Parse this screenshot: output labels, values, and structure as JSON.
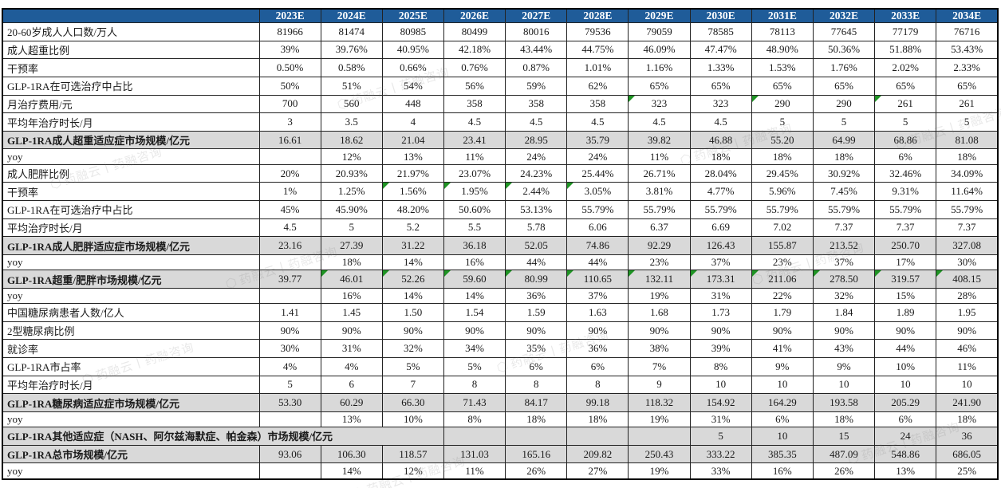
{
  "watermark": {
    "text": "药融云丨药融咨询",
    "icon": "hexagon-logo"
  },
  "table": {
    "corner_label": "",
    "years": [
      "2023E",
      "2024E",
      "2025E",
      "2026E",
      "2027E",
      "2028E",
      "2029E",
      "2030E",
      "2031E",
      "2032E",
      "2033E",
      "2034E"
    ],
    "rows": [
      {
        "label": "20-60岁成人人口数/万人",
        "style": "normal",
        "values": [
          "81966",
          "81474",
          "80985",
          "80499",
          "80016",
          "79536",
          "79059",
          "78585",
          "78113",
          "77645",
          "77179",
          "76716"
        ]
      },
      {
        "label": "成人超重比例",
        "style": "normal",
        "values": [
          "39%",
          "39.76%",
          "40.95%",
          "42.18%",
          "43.44%",
          "44.75%",
          "46.09%",
          "47.47%",
          "48.90%",
          "50.36%",
          "51.88%",
          "53.43%"
        ]
      },
      {
        "label": "干预率",
        "style": "normal",
        "values": [
          "0.50%",
          "0.58%",
          "0.66%",
          "0.76%",
          "0.87%",
          "1.01%",
          "1.16%",
          "1.33%",
          "1.53%",
          "1.76%",
          "2.02%",
          "2.33%"
        ]
      },
      {
        "label": "GLP-1RA在可选治疗中占比",
        "style": "normal",
        "values": [
          "50%",
          "51%",
          "54%",
          "56%",
          "59%",
          "62%",
          "65%",
          "65%",
          "65%",
          "65%",
          "65%",
          "65%"
        ]
      },
      {
        "label": "月治疗费用/元",
        "style": "normal",
        "markers": [
          6,
          8,
          10
        ],
        "values": [
          "700",
          "560",
          "448",
          "358",
          "358",
          "358",
          "323",
          "323",
          "290",
          "290",
          "261",
          "261"
        ]
      },
      {
        "label": "平均年治疗时长/月",
        "style": "normal",
        "values": [
          "3",
          "3.5",
          "4",
          "4.5",
          "4.5",
          "4.5",
          "4.5",
          "4.5",
          "5",
          "5",
          "5",
          "5"
        ]
      },
      {
        "label": "GLP-1RA成人超重适应症市场规模/亿元",
        "style": "summary",
        "values": [
          "16.61",
          "18.62",
          "21.04",
          "23.41",
          "28.95",
          "35.79",
          "39.82",
          "46.88",
          "55.20",
          "64.99",
          "68.86",
          "81.08"
        ]
      },
      {
        "label": "yoy",
        "style": "normal",
        "values": [
          "",
          "12%",
          "13%",
          "11%",
          "24%",
          "24%",
          "11%",
          "18%",
          "18%",
          "18%",
          "6%",
          "18%"
        ]
      },
      {
        "label": "成人肥胖比例",
        "style": "normal",
        "values": [
          "20%",
          "20.93%",
          "21.97%",
          "23.07%",
          "24.23%",
          "25.44%",
          "26.71%",
          "28.04%",
          "29.45%",
          "30.92%",
          "32.46%",
          "34.09%"
        ]
      },
      {
        "label": "干预率",
        "style": "normal",
        "markers": [
          2,
          3,
          4,
          5
        ],
        "values": [
          "1%",
          "1.25%",
          "1.56%",
          "1.95%",
          "2.44%",
          "3.05%",
          "3.81%",
          "4.77%",
          "5.96%",
          "7.45%",
          "9.31%",
          "11.64%"
        ]
      },
      {
        "label": "GLP-1RA在可选治疗中占比",
        "style": "normal",
        "values": [
          "45%",
          "45.90%",
          "48.20%",
          "50.60%",
          "53.13%",
          "55.79%",
          "55.79%",
          "55.79%",
          "55.79%",
          "55.79%",
          "55.79%",
          "55.79%"
        ]
      },
      {
        "label": "平均治疗时长/月",
        "style": "normal",
        "values": [
          "4.5",
          "5",
          "5.2",
          "5.5",
          "5.78",
          "6.06",
          "6.37",
          "6.69",
          "7.02",
          "7.37",
          "7.37",
          "7.37"
        ]
      },
      {
        "label": "GLP-1RA成人肥胖适应症市场规模/亿元",
        "style": "summary",
        "values": [
          "23.16",
          "27.39",
          "31.22",
          "36.18",
          "52.05",
          "74.86",
          "92.29",
          "126.43",
          "155.87",
          "213.52",
          "250.70",
          "327.08"
        ]
      },
      {
        "label": "yoy",
        "style": "normal",
        "values": [
          "",
          "18%",
          "14%",
          "16%",
          "44%",
          "44%",
          "23%",
          "37%",
          "23%",
          "37%",
          "17%",
          "30%"
        ]
      },
      {
        "label": "GLP-1RA超重/肥胖市场规模/亿元",
        "style": "summary",
        "markers": [
          1,
          2,
          3,
          4,
          5,
          6,
          7,
          8,
          9,
          10,
          11
        ],
        "values": [
          "39.77",
          "46.01",
          "52.26",
          "59.60",
          "80.99",
          "110.65",
          "132.11",
          "173.31",
          "211.06",
          "278.50",
          "319.57",
          "408.15"
        ]
      },
      {
        "label": "yoy",
        "style": "normal",
        "values": [
          "",
          "16%",
          "14%",
          "14%",
          "36%",
          "37%",
          "19%",
          "31%",
          "22%",
          "32%",
          "15%",
          "28%"
        ]
      },
      {
        "label": "中国糖尿病患者人数/亿人",
        "style": "normal",
        "values": [
          "1.41",
          "1.45",
          "1.50",
          "1.54",
          "1.59",
          "1.63",
          "1.68",
          "1.73",
          "1.79",
          "1.84",
          "1.89",
          "1.95"
        ]
      },
      {
        "label": "2型糖尿病比例",
        "style": "normal",
        "values": [
          "90%",
          "90%",
          "90%",
          "90%",
          "90%",
          "90%",
          "90%",
          "90%",
          "90%",
          "90%",
          "90%",
          "90%"
        ]
      },
      {
        "label": "就诊率",
        "style": "normal",
        "values": [
          "30%",
          "31%",
          "32%",
          "34%",
          "35%",
          "36%",
          "38%",
          "39%",
          "41%",
          "43%",
          "44%",
          "46%"
        ]
      },
      {
        "label": "GLP-1RA市占率",
        "style": "normal",
        "values": [
          "4%",
          "4%",
          "5%",
          "5%",
          "6%",
          "6%",
          "7%",
          "8%",
          "9%",
          "9%",
          "10%",
          "11%"
        ]
      },
      {
        "label": "平均年治疗时长/月",
        "style": "normal",
        "values": [
          "5",
          "6",
          "7",
          "8",
          "8",
          "8",
          "9",
          "10",
          "10",
          "10",
          "10",
          "10"
        ]
      },
      {
        "label": "GLP-1RA糖尿病适应症市场规模/亿元",
        "style": "summary",
        "values": [
          "53.30",
          "60.29",
          "66.30",
          "71.43",
          "84.17",
          "99.18",
          "118.32",
          "154.92",
          "164.29",
          "193.58",
          "205.29",
          "241.90"
        ]
      },
      {
        "label": "yoy",
        "style": "normal",
        "values": [
          "",
          "13%",
          "10%",
          "8%",
          "18%",
          "18%",
          "19%",
          "31%",
          "6%",
          "18%",
          "6%",
          "18%"
        ]
      },
      {
        "label": "GLP-1RA其他适应症（NASH、阿尔兹海默症、帕金森）市场规模/亿元",
        "style": "summary",
        "label_colspan": 4,
        "values": [
          "",
          "",
          "",
          "",
          "5",
          "10",
          "15",
          "24",
          "36"
        ]
      },
      {
        "label": "GLP-1RA总市场规模/亿元",
        "style": "summary",
        "values": [
          "93.06",
          "106.30",
          "118.57",
          "131.03",
          "165.16",
          "209.82",
          "250.43",
          "333.22",
          "385.35",
          "487.09",
          "548.86",
          "686.05"
        ]
      },
      {
        "label": "yoy",
        "style": "normal",
        "values": [
          "",
          "14%",
          "12%",
          "11%",
          "26%",
          "27%",
          "19%",
          "33%",
          "16%",
          "26%",
          "13%",
          "25%"
        ]
      }
    ]
  }
}
